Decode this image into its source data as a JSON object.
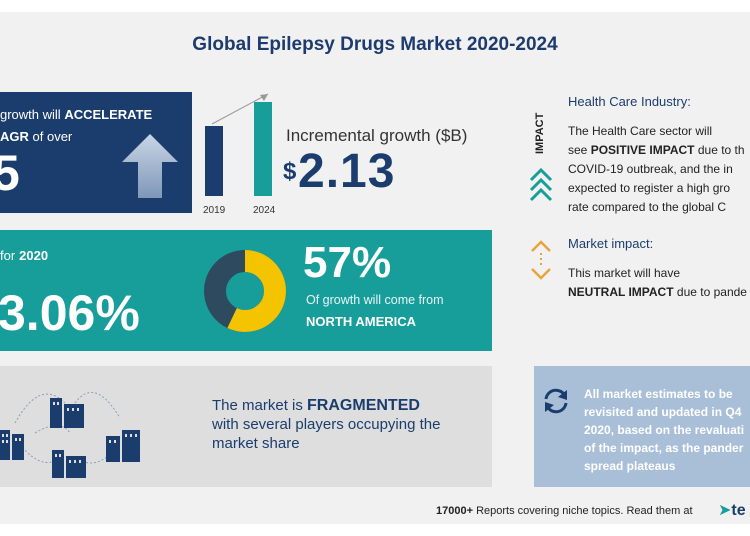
{
  "title": "Global Epilepsy Drugs Market 2020-2024",
  "growth_box": {
    "line1_text": "growth will",
    "line1_bold": "ACCELERATE",
    "line2_bold": "AGR",
    "line2_text": "of over",
    "big_value": "5"
  },
  "bars": {
    "labels": [
      "2019",
      "2024"
    ],
    "colors": [
      "#1b3d6d",
      "#189e9a"
    ]
  },
  "incremental": {
    "label": "Incremental growth ($B)",
    "dollar": "$",
    "value": "2.13"
  },
  "yoy_box": {
    "label": "for",
    "year": "2020",
    "value": "3.06%",
    "share_value": "57%",
    "share_text": "Of growth will come from",
    "region": "NORTH AMERICA",
    "share_fraction": 0.57
  },
  "fragment_box": {
    "line1_prefix": "The market is",
    "line1_bold": "FRAGMENTED",
    "line2": "with several players occupying the",
    "line3": "market share"
  },
  "impact": {
    "vertical_label": "IMPACT",
    "hc_title": "Health Care Industry:",
    "hc_line1": "The Health Care sector will",
    "hc_line2_prefix": "see",
    "hc_line2_bold": "POSITIVE IMPACT",
    "hc_line2_suffix": "due to th",
    "hc_line3": "COVID-19 outbreak, and the in",
    "hc_line4": "expected to register a high gro",
    "hc_line5": "rate compared to the global C",
    "mi_title": "Market impact:",
    "mi_line1": "This market will have",
    "mi_line2_bold": "NEUTRAL IMPACT",
    "mi_line2_suffix": "due to pande"
  },
  "note": {
    "line1": "All market estimates to be",
    "line2": "revisited and updated in Q4",
    "line3": "2020, based on the revaluati",
    "line4": "of the impact, as the pander",
    "line5": "spread plateaus"
  },
  "footer": {
    "count": "17000+",
    "text": "Reports covering niche topics. Read them at",
    "logo": "te"
  },
  "colors": {
    "navy": "#1b3d6d",
    "teal": "#189e9a",
    "yellow": "#f5c400",
    "light_blue": "#a9bfd8"
  }
}
